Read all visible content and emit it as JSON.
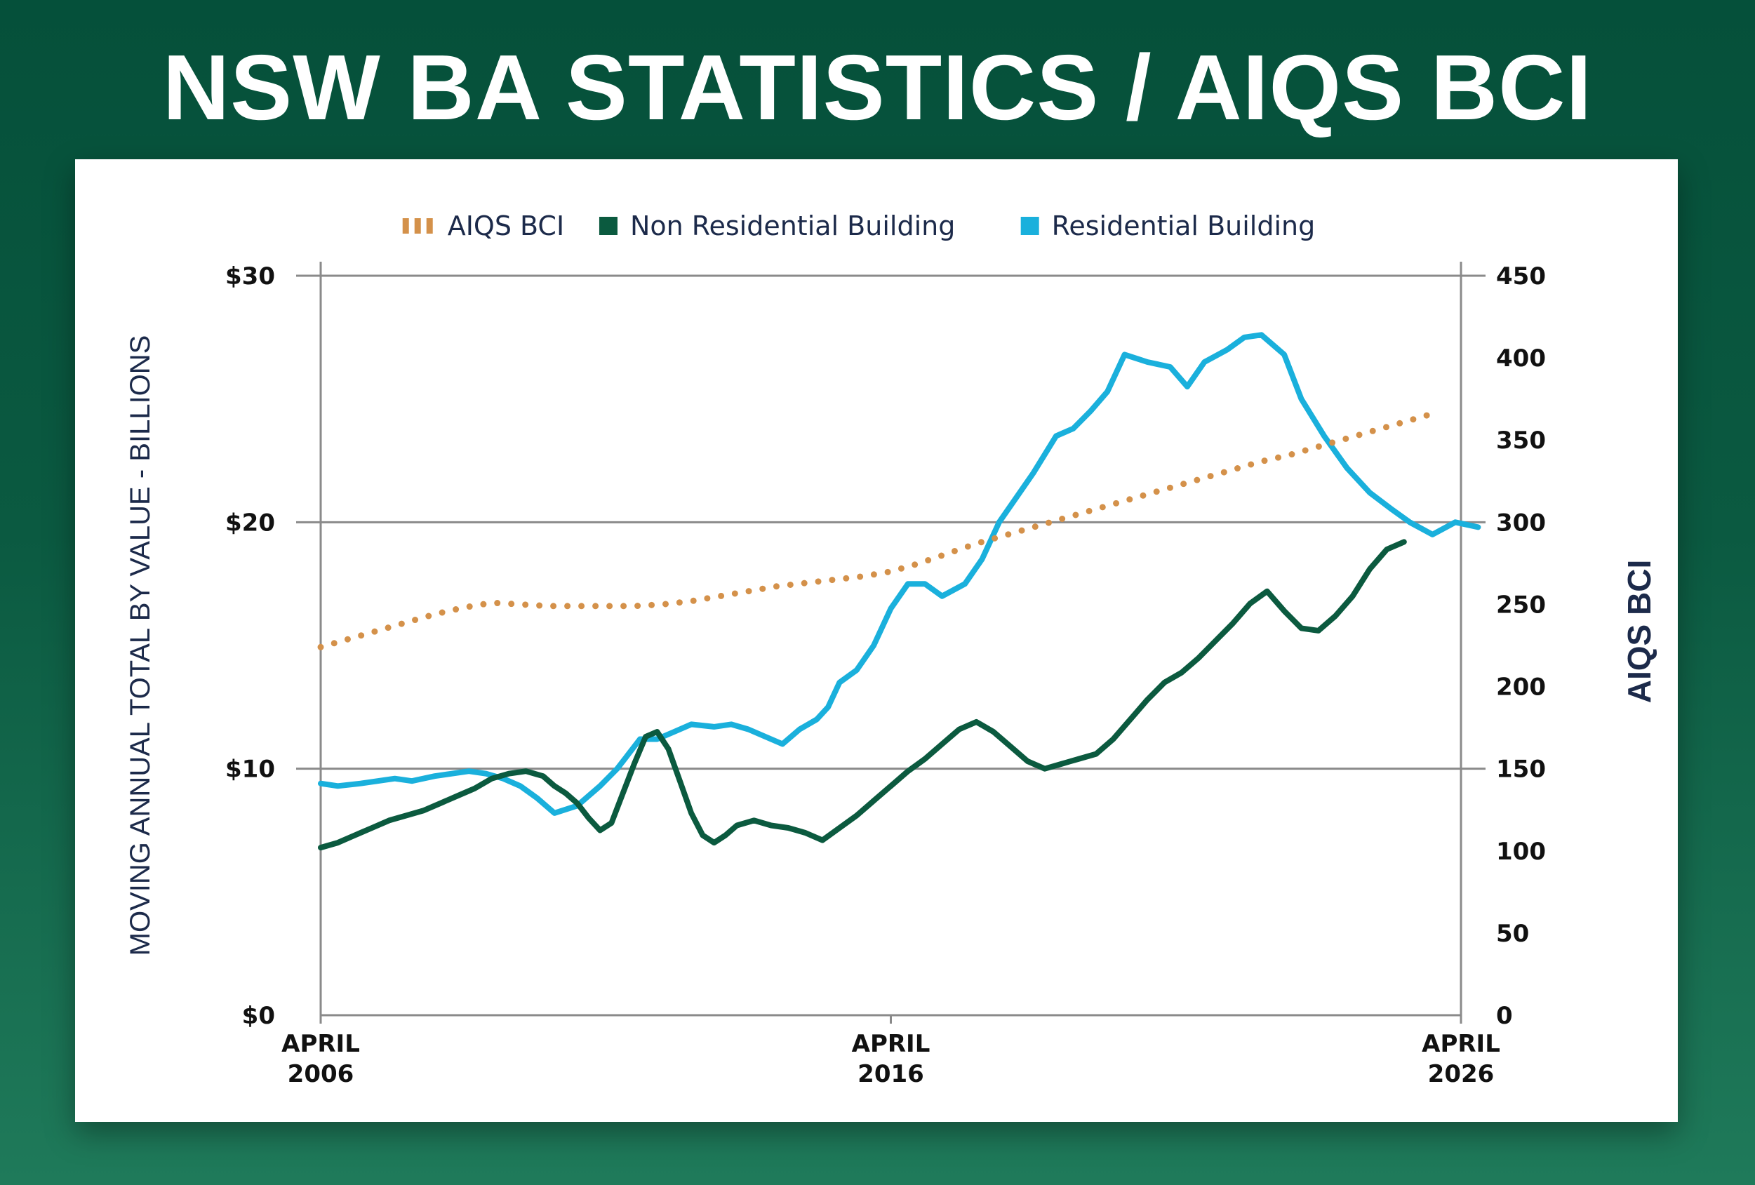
{
  "page": {
    "title": "NSW BA STATISTICS / AIQS BCI"
  },
  "colors": {
    "aiqs": "#d4914a",
    "non_residential": "#0b5a3f",
    "residential": "#1ab0dc",
    "grid": "#8a8a8a",
    "axis_title": "#1c2a4a"
  },
  "chart_data": {
    "type": "line",
    "title": "NSW BA STATISTICS / AIQS BCI",
    "legend": {
      "placement": "top-center",
      "items": [
        {
          "label": "AIQS BCI",
          "style": "dotted",
          "color": "#d4914a"
        },
        {
          "label": "Non Residential Building",
          "style": "solid",
          "color": "#0b5a3f"
        },
        {
          "label": "Residential Building",
          "style": "solid",
          "color": "#1ab0dc"
        }
      ]
    },
    "ylabel": "MOVING ANNUAL TOTAL BY VALUE - BILLIONS",
    "y2label": "AIQS BCI",
    "xlim": [
      2006,
      2026
    ],
    "ylim": [
      0,
      30
    ],
    "y2lim": [
      0,
      450
    ],
    "x_ticks": [
      {
        "value": 2006,
        "line1": "APRIL",
        "line2": "2006"
      },
      {
        "value": 2016,
        "line1": "APRIL",
        "line2": "2016"
      },
      {
        "value": 2026,
        "line1": "APRIL",
        "line2": "2026"
      }
    ],
    "y_ticks": [
      {
        "value": 0,
        "label": "$0"
      },
      {
        "value": 10,
        "label": "$10"
      },
      {
        "value": 20,
        "label": "$20"
      },
      {
        "value": 30,
        "label": "$30"
      }
    ],
    "y2_ticks": [
      {
        "value": 0,
        "label": "0"
      },
      {
        "value": 50,
        "label": "50"
      },
      {
        "value": 100,
        "label": "100"
      },
      {
        "value": 150,
        "label": "150"
      },
      {
        "value": 200,
        "label": "200"
      },
      {
        "value": 250,
        "label": "250"
      },
      {
        "value": 300,
        "label": "300"
      },
      {
        "value": 350,
        "label": "350"
      },
      {
        "value": 400,
        "label": "400"
      },
      {
        "value": 450,
        "label": "450"
      }
    ],
    "grid": "horizontal at $10, $20, $30",
    "series": [
      {
        "name": "Residential Building",
        "axis": "left",
        "points": [
          [
            2006.0,
            9.4
          ],
          [
            2006.3,
            9.3
          ],
          [
            2006.7,
            9.4
          ],
          [
            2007.0,
            9.5
          ],
          [
            2007.3,
            9.6
          ],
          [
            2007.6,
            9.5
          ],
          [
            2008.0,
            9.7
          ],
          [
            2008.3,
            9.8
          ],
          [
            2008.6,
            9.9
          ],
          [
            2008.9,
            9.8
          ],
          [
            2009.2,
            9.6
          ],
          [
            2009.5,
            9.3
          ],
          [
            2009.8,
            8.8
          ],
          [
            2010.1,
            8.2
          ],
          [
            2010.5,
            8.5
          ],
          [
            2010.9,
            9.3
          ],
          [
            2011.2,
            10.0
          ],
          [
            2011.4,
            10.6
          ],
          [
            2011.6,
            11.2
          ],
          [
            2011.9,
            11.2
          ],
          [
            2012.2,
            11.5
          ],
          [
            2012.5,
            11.8
          ],
          [
            2012.9,
            11.7
          ],
          [
            2013.2,
            11.8
          ],
          [
            2013.5,
            11.6
          ],
          [
            2013.8,
            11.3
          ],
          [
            2014.1,
            11.0
          ],
          [
            2014.4,
            11.6
          ],
          [
            2014.7,
            12.0
          ],
          [
            2014.9,
            12.5
          ],
          [
            2015.1,
            13.5
          ],
          [
            2015.4,
            14.0
          ],
          [
            2015.7,
            15.0
          ],
          [
            2016.0,
            16.5
          ],
          [
            2016.3,
            17.5
          ],
          [
            2016.6,
            17.5
          ],
          [
            2016.9,
            17.0
          ],
          [
            2017.3,
            17.5
          ],
          [
            2017.6,
            18.5
          ],
          [
            2017.9,
            20.0
          ],
          [
            2018.2,
            21.0
          ],
          [
            2018.5,
            22.0
          ],
          [
            2018.9,
            23.5
          ],
          [
            2019.2,
            23.8
          ],
          [
            2019.5,
            24.5
          ],
          [
            2019.8,
            25.3
          ],
          [
            2020.1,
            26.8
          ],
          [
            2020.5,
            26.5
          ],
          [
            2020.9,
            26.3
          ],
          [
            2021.2,
            25.5
          ],
          [
            2021.5,
            26.5
          ],
          [
            2021.9,
            27.0
          ],
          [
            2022.2,
            27.5
          ],
          [
            2022.5,
            27.6
          ],
          [
            2022.9,
            26.8
          ],
          [
            2023.2,
            25.0
          ],
          [
            2023.6,
            23.5
          ],
          [
            2024.0,
            22.2
          ],
          [
            2024.4,
            21.2
          ],
          [
            2024.8,
            20.5
          ],
          [
            2025.1,
            20.0
          ],
          [
            2025.5,
            19.5
          ],
          [
            2025.9,
            20.0
          ],
          [
            2026.3,
            19.8
          ]
        ]
      },
      {
        "name": "Non Residential Building",
        "axis": "left",
        "points": [
          [
            2006.0,
            6.8
          ],
          [
            2006.3,
            7.0
          ],
          [
            2006.6,
            7.3
          ],
          [
            2006.9,
            7.6
          ],
          [
            2007.2,
            7.9
          ],
          [
            2007.5,
            8.1
          ],
          [
            2007.8,
            8.3
          ],
          [
            2008.1,
            8.6
          ],
          [
            2008.4,
            8.9
          ],
          [
            2008.7,
            9.2
          ],
          [
            2009.0,
            9.6
          ],
          [
            2009.3,
            9.8
          ],
          [
            2009.6,
            9.9
          ],
          [
            2009.9,
            9.7
          ],
          [
            2010.1,
            9.3
          ],
          [
            2010.3,
            9.0
          ],
          [
            2010.5,
            8.6
          ],
          [
            2010.7,
            8.0
          ],
          [
            2010.9,
            7.5
          ],
          [
            2011.1,
            7.8
          ],
          [
            2011.3,
            9.0
          ],
          [
            2011.5,
            10.2
          ],
          [
            2011.7,
            11.3
          ],
          [
            2011.9,
            11.5
          ],
          [
            2012.1,
            10.8
          ],
          [
            2012.3,
            9.5
          ],
          [
            2012.5,
            8.2
          ],
          [
            2012.7,
            7.3
          ],
          [
            2012.9,
            7.0
          ],
          [
            2013.1,
            7.3
          ],
          [
            2013.3,
            7.7
          ],
          [
            2013.6,
            7.9
          ],
          [
            2013.9,
            7.7
          ],
          [
            2014.2,
            7.6
          ],
          [
            2014.5,
            7.4
          ],
          [
            2014.8,
            7.1
          ],
          [
            2015.1,
            7.6
          ],
          [
            2015.4,
            8.1
          ],
          [
            2015.7,
            8.7
          ],
          [
            2016.0,
            9.3
          ],
          [
            2016.3,
            9.9
          ],
          [
            2016.6,
            10.4
          ],
          [
            2016.9,
            11.0
          ],
          [
            2017.2,
            11.6
          ],
          [
            2017.5,
            11.9
          ],
          [
            2017.8,
            11.5
          ],
          [
            2018.1,
            10.9
          ],
          [
            2018.4,
            10.3
          ],
          [
            2018.7,
            10.0
          ],
          [
            2019.0,
            10.2
          ],
          [
            2019.3,
            10.4
          ],
          [
            2019.6,
            10.6
          ],
          [
            2019.9,
            11.2
          ],
          [
            2020.2,
            12.0
          ],
          [
            2020.5,
            12.8
          ],
          [
            2020.8,
            13.5
          ],
          [
            2021.1,
            13.9
          ],
          [
            2021.4,
            14.5
          ],
          [
            2021.7,
            15.2
          ],
          [
            2022.0,
            15.9
          ],
          [
            2022.3,
            16.7
          ],
          [
            2022.6,
            17.2
          ],
          [
            2022.9,
            16.4
          ],
          [
            2023.2,
            15.7
          ],
          [
            2023.5,
            15.6
          ],
          [
            2023.8,
            16.2
          ],
          [
            2024.1,
            17.0
          ],
          [
            2024.4,
            18.1
          ],
          [
            2024.7,
            18.9
          ],
          [
            2025.0,
            19.2
          ]
        ]
      },
      {
        "name": "AIQS BCI",
        "axis": "right",
        "points": [
          [
            2006.0,
            224
          ],
          [
            2006.5,
            229
          ],
          [
            2007.0,
            234
          ],
          [
            2007.5,
            239
          ],
          [
            2008.0,
            244
          ],
          [
            2008.5,
            248
          ],
          [
            2009.0,
            251
          ],
          [
            2009.5,
            250
          ],
          [
            2010.0,
            249
          ],
          [
            2010.5,
            249
          ],
          [
            2011.0,
            249
          ],
          [
            2011.5,
            249
          ],
          [
            2012.0,
            250
          ],
          [
            2012.5,
            252
          ],
          [
            2013.0,
            255
          ],
          [
            2013.5,
            258
          ],
          [
            2014.0,
            261
          ],
          [
            2014.5,
            263
          ],
          [
            2015.0,
            265
          ],
          [
            2015.5,
            267
          ],
          [
            2016.0,
            270
          ],
          [
            2016.5,
            275
          ],
          [
            2017.0,
            281
          ],
          [
            2017.5,
            287
          ],
          [
            2018.0,
            292
          ],
          [
            2018.5,
            297
          ],
          [
            2019.0,
            302
          ],
          [
            2019.5,
            307
          ],
          [
            2020.0,
            312
          ],
          [
            2020.5,
            317
          ],
          [
            2021.0,
            322
          ],
          [
            2021.5,
            327
          ],
          [
            2022.0,
            332
          ],
          [
            2022.5,
            337
          ],
          [
            2023.0,
            341
          ],
          [
            2023.5,
            346
          ],
          [
            2024.0,
            351
          ],
          [
            2024.5,
            356
          ],
          [
            2025.0,
            361
          ],
          [
            2025.5,
            366
          ]
        ]
      }
    ]
  }
}
